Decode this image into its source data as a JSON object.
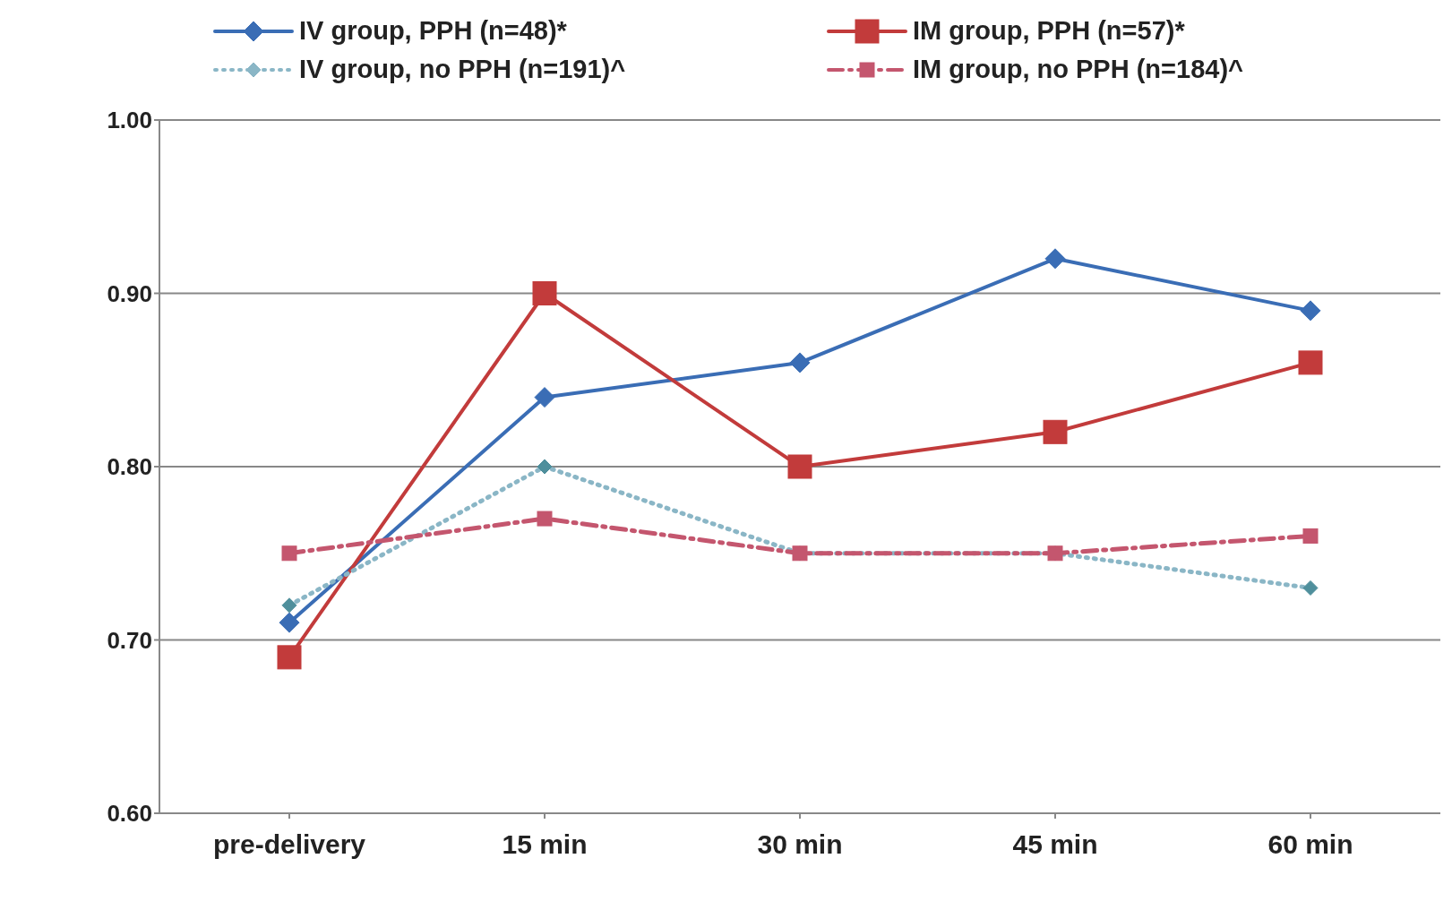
{
  "chart_data": {
    "type": "line",
    "categories": [
      "pre-delivery",
      "15 min",
      "30 min",
      "45 min",
      "60 min"
    ],
    "series": [
      {
        "name": "IV group, PPH (n=48)*",
        "color": "#3a6db5",
        "values": [
          0.71,
          0.84,
          0.86,
          0.92,
          0.89
        ],
        "marker": "diamond",
        "line_style": "solid"
      },
      {
        "name": "IM group, PPH (n=57)*",
        "color": "#c23b3b",
        "values": [
          0.69,
          0.9,
          0.8,
          0.82,
          0.86
        ],
        "marker": "square",
        "line_style": "solid"
      },
      {
        "name": "IV group, no PPH (n=191)^",
        "color": "#8ab6c6",
        "values": [
          0.72,
          0.8,
          0.75,
          0.75,
          0.73
        ],
        "marker": "diamond",
        "line_style": "dotted"
      },
      {
        "name": "IM group, no PPH (n=184)^",
        "color": "#c4566e",
        "values": [
          0.75,
          0.77,
          0.75,
          0.75,
          0.76
        ],
        "marker": "square",
        "line_style": "dashdot"
      }
    ],
    "ylim": [
      0.6,
      1.0
    ],
    "yticks": [
      {
        "value": 0.6,
        "label": "0.60"
      },
      {
        "value": 0.7,
        "label": "0.70"
      },
      {
        "value": 0.8,
        "label": "0.80"
      },
      {
        "value": 0.9,
        "label": "0.90"
      },
      {
        "value": 1.0,
        "label": "1.00"
      }
    ],
    "grid": "y",
    "legend": "top"
  }
}
